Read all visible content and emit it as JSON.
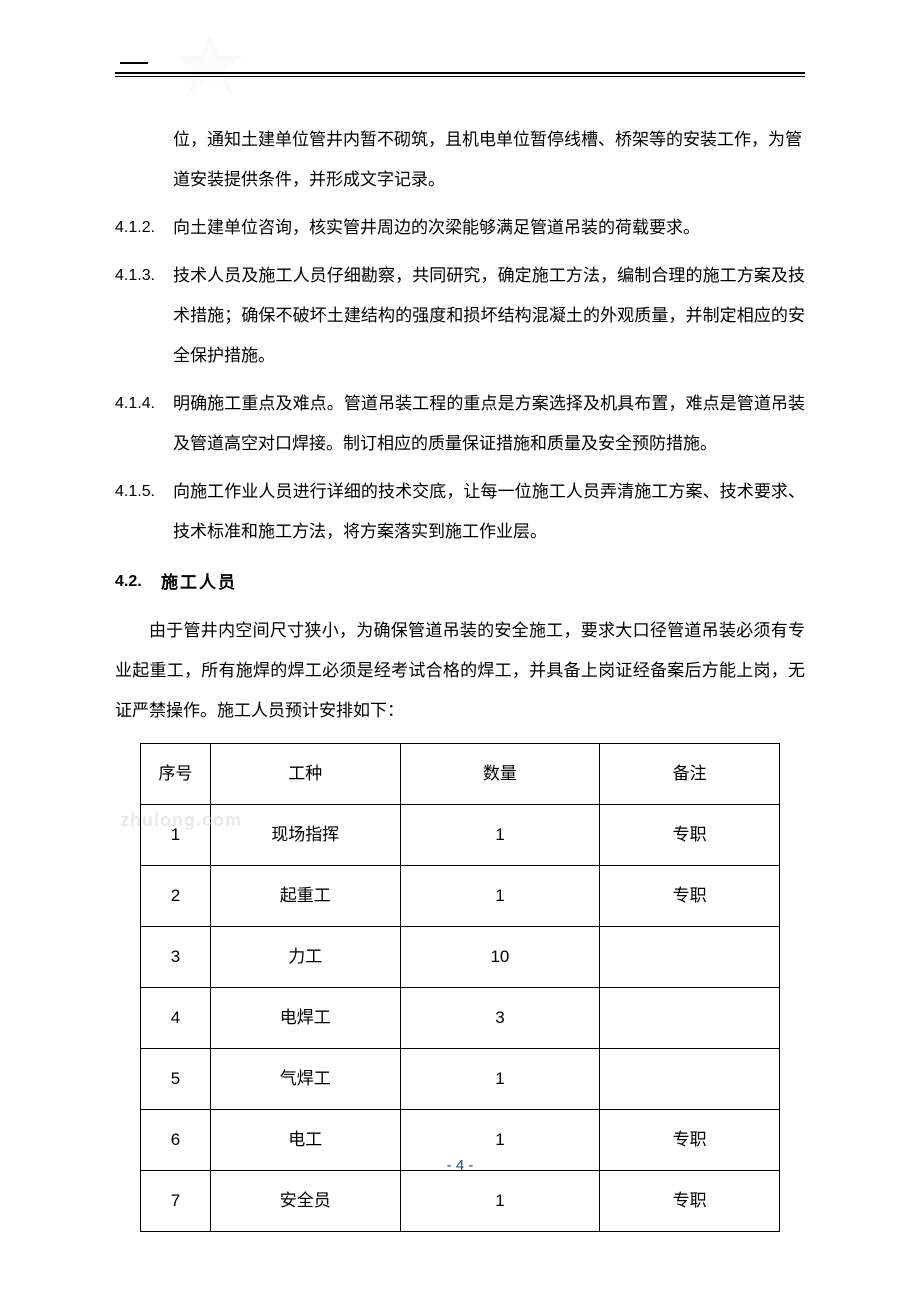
{
  "continuation": "位，通知土建单位管井内暂不砌筑，且机电单位暂停线槽、桥架等的安装工作，为管道安装提供条件，并形成文字记录。",
  "items": [
    {
      "num": "4.1.2.",
      "text": "向土建单位咨询，核实管井周边的次梁能够满足管道吊装的荷载要求。"
    },
    {
      "num": "4.1.3.",
      "text": "技术人员及施工人员仔细勘察，共同研究，确定施工方法，编制合理的施工方案及技术措施；确保不破坏土建结构的强度和损坏结构混凝土的外观质量，并制定相应的安全保护措施。"
    },
    {
      "num": "4.1.4.",
      "text": "明确施工重点及难点。管道吊装工程的重点是方案选择及机具布置，难点是管道吊装及管道高空对口焊接。制订相应的质量保证措施和质量及安全预防措施。"
    },
    {
      "num": "4.1.5.",
      "text": "向施工作业人员进行详细的技术交底，让每一位施工人员弄清施工方案、技术要求、技术标准和施工方法，将方案落实到施工作业层。"
    }
  ],
  "section": {
    "num": "4.2.",
    "title": "施工人员"
  },
  "section_para": "由于管井内空间尺寸狭小，为确保管道吊装的安全施工，要求大口径管道吊装必须有专业起重工，所有施焊的焊工必须是经考试合格的焊工，并具备上岗证经备案后方能上岗，无证严禁操作。施工人员预计安排如下：",
  "table": {
    "headers": [
      "序号",
      "工种",
      "数量",
      "备注"
    ],
    "rows": [
      [
        "1",
        "现场指挥",
        "1",
        "专职"
      ],
      [
        "2",
        "起重工",
        "1",
        "专职"
      ],
      [
        "3",
        "力工",
        "10",
        ""
      ],
      [
        "4",
        "电焊工",
        "3",
        ""
      ],
      [
        "5",
        "气焊工",
        "1",
        ""
      ],
      [
        "6",
        "电工",
        "1",
        "专职"
      ],
      [
        "7",
        "安全员",
        "1",
        "专职"
      ]
    ]
  },
  "watermark_text": "zhulong.com",
  "page_number": "- 4 -",
  "colors": {
    "text": "#000000",
    "page_num": "#1a4d8f",
    "watermark": "#dcdcdc",
    "background": "#ffffff"
  }
}
